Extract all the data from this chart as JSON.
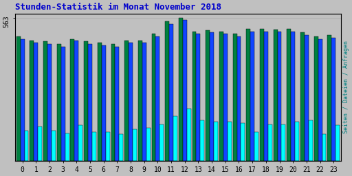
{
  "title": "Stunden-Statistik im Monat November 2018",
  "title_color": "#0000CC",
  "ylabel": "Seiten / Dateien / Anfragen",
  "ylabel_color": "#008080",
  "xlabel_vals": [
    "0",
    "1",
    "2",
    "3",
    "4",
    "5",
    "6",
    "7",
    "8",
    "9",
    "10",
    "11",
    "12",
    "13",
    "14",
    "15",
    "16",
    "17",
    "18",
    "19",
    "20",
    "21",
    "22",
    "23"
  ],
  "ytick_label": "563",
  "ytick_color": "#000000",
  "background_color": "#C0C0C0",
  "plot_bg_color": "#C0C0C0",
  "grid_color": "#B0B0B0",
  "bar_width": 0.3,
  "seiten": [
    490,
    475,
    470,
    460,
    480,
    470,
    465,
    460,
    475,
    475,
    500,
    550,
    563,
    510,
    515,
    510,
    500,
    520,
    520,
    518,
    520,
    505,
    490,
    495
  ],
  "dateien": [
    480,
    465,
    460,
    450,
    475,
    460,
    455,
    450,
    465,
    465,
    490,
    540,
    555,
    500,
    505,
    500,
    490,
    510,
    510,
    508,
    510,
    495,
    480,
    485
  ],
  "anfragen": [
    120,
    135,
    120,
    110,
    140,
    115,
    115,
    105,
    125,
    130,
    145,
    175,
    205,
    160,
    155,
    155,
    150,
    115,
    145,
    145,
    155,
    160,
    105,
    140
  ],
  "seiten_color": "#008040",
  "dateien_color": "#1144FF",
  "anfragen_color": "#00FFFF",
  "ylim_max": 580,
  "ylim_min": 0,
  "yticks": [
    563
  ],
  "border_color": "#000000"
}
